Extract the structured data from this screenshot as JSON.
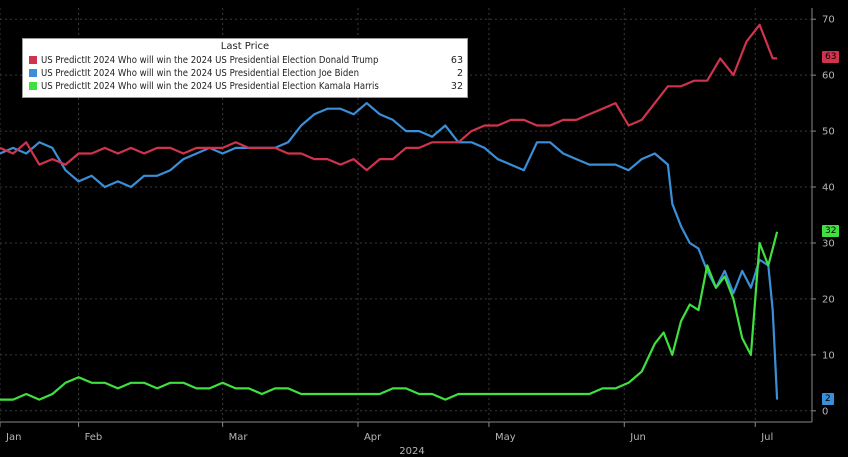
{
  "chart_data": {
    "type": "line",
    "legend": {
      "title": "Last Price",
      "placement": "top-left"
    },
    "series": [
      {
        "name": "US PredictIt 2024 Who will win the 2024 US Presidential Election Donald Trump",
        "last": "63",
        "color": "#d0334e",
        "values": [
          [
            0,
            47
          ],
          [
            3,
            46
          ],
          [
            6,
            48
          ],
          [
            9,
            44
          ],
          [
            12,
            45
          ],
          [
            15,
            44
          ],
          [
            18,
            46
          ],
          [
            21,
            46
          ],
          [
            24,
            47
          ],
          [
            27,
            46
          ],
          [
            30,
            47
          ],
          [
            33,
            46
          ],
          [
            36,
            47
          ],
          [
            39,
            47
          ],
          [
            42,
            46
          ],
          [
            45,
            47
          ],
          [
            48,
            47
          ],
          [
            51,
            47
          ],
          [
            54,
            48
          ],
          [
            57,
            47
          ],
          [
            60,
            47
          ],
          [
            63,
            47
          ],
          [
            66,
            46
          ],
          [
            69,
            46
          ],
          [
            72,
            45
          ],
          [
            75,
            45
          ],
          [
            78,
            44
          ],
          [
            81,
            45
          ],
          [
            84,
            43
          ],
          [
            87,
            45
          ],
          [
            90,
            45
          ],
          [
            93,
            47
          ],
          [
            96,
            47
          ],
          [
            99,
            48
          ],
          [
            102,
            48
          ],
          [
            105,
            48
          ],
          [
            108,
            50
          ],
          [
            111,
            51
          ],
          [
            114,
            51
          ],
          [
            117,
            52
          ],
          [
            120,
            52
          ],
          [
            123,
            51
          ],
          [
            126,
            51
          ],
          [
            129,
            52
          ],
          [
            132,
            52
          ],
          [
            135,
            53
          ],
          [
            138,
            54
          ],
          [
            141,
            55
          ],
          [
            144,
            51
          ],
          [
            147,
            52
          ],
          [
            150,
            55
          ],
          [
            153,
            58
          ],
          [
            156,
            58
          ],
          [
            159,
            59
          ],
          [
            162,
            59
          ],
          [
            165,
            63
          ],
          [
            168,
            60
          ],
          [
            171,
            66
          ],
          [
            174,
            69
          ],
          [
            177,
            63
          ],
          [
            178,
            63
          ]
        ]
      },
      {
        "name": "US PredictIt 2024 Who will win the 2024 US Presidential Election Joe Biden",
        "last": "2",
        "color": "#3a8fd8",
        "values": [
          [
            0,
            46
          ],
          [
            3,
            47
          ],
          [
            6,
            46
          ],
          [
            9,
            48
          ],
          [
            12,
            47
          ],
          [
            15,
            43
          ],
          [
            18,
            41
          ],
          [
            21,
            42
          ],
          [
            24,
            40
          ],
          [
            27,
            41
          ],
          [
            30,
            40
          ],
          [
            33,
            42
          ],
          [
            36,
            42
          ],
          [
            39,
            43
          ],
          [
            42,
            45
          ],
          [
            45,
            46
          ],
          [
            48,
            47
          ],
          [
            51,
            46
          ],
          [
            54,
            47
          ],
          [
            57,
            47
          ],
          [
            60,
            47
          ],
          [
            63,
            47
          ],
          [
            66,
            48
          ],
          [
            69,
            51
          ],
          [
            72,
            53
          ],
          [
            75,
            54
          ],
          [
            78,
            54
          ],
          [
            81,
            53
          ],
          [
            84,
            55
          ],
          [
            87,
            53
          ],
          [
            90,
            52
          ],
          [
            93,
            50
          ],
          [
            96,
            50
          ],
          [
            99,
            49
          ],
          [
            102,
            51
          ],
          [
            105,
            48
          ],
          [
            108,
            48
          ],
          [
            111,
            47
          ],
          [
            114,
            45
          ],
          [
            117,
            44
          ],
          [
            120,
            43
          ],
          [
            123,
            48
          ],
          [
            126,
            48
          ],
          [
            129,
            46
          ],
          [
            132,
            45
          ],
          [
            135,
            44
          ],
          [
            138,
            44
          ],
          [
            141,
            44
          ],
          [
            144,
            43
          ],
          [
            147,
            45
          ],
          [
            150,
            46
          ],
          [
            153,
            44
          ],
          [
            154,
            37
          ],
          [
            156,
            33
          ],
          [
            158,
            30
          ],
          [
            160,
            29
          ],
          [
            162,
            25
          ],
          [
            164,
            22
          ],
          [
            166,
            25
          ],
          [
            168,
            21
          ],
          [
            170,
            25
          ],
          [
            172,
            22
          ],
          [
            174,
            27
          ],
          [
            176,
            26
          ],
          [
            177,
            18
          ],
          [
            178,
            2
          ]
        ]
      },
      {
        "name": "US PredictIt 2024 Who will win the 2024 US Presidential Election Kamala Harris",
        "last": "32",
        "color": "#3fe03f",
        "values": [
          [
            0,
            2
          ],
          [
            3,
            2
          ],
          [
            6,
            3
          ],
          [
            9,
            2
          ],
          [
            12,
            3
          ],
          [
            15,
            5
          ],
          [
            18,
            6
          ],
          [
            21,
            5
          ],
          [
            24,
            5
          ],
          [
            27,
            4
          ],
          [
            30,
            5
          ],
          [
            33,
            5
          ],
          [
            36,
            4
          ],
          [
            39,
            5
          ],
          [
            42,
            5
          ],
          [
            45,
            4
          ],
          [
            48,
            4
          ],
          [
            51,
            5
          ],
          [
            54,
            4
          ],
          [
            57,
            4
          ],
          [
            60,
            3
          ],
          [
            63,
            4
          ],
          [
            66,
            4
          ],
          [
            69,
            3
          ],
          [
            72,
            3
          ],
          [
            75,
            3
          ],
          [
            78,
            3
          ],
          [
            81,
            3
          ],
          [
            84,
            3
          ],
          [
            87,
            3
          ],
          [
            90,
            4
          ],
          [
            93,
            4
          ],
          [
            96,
            3
          ],
          [
            99,
            3
          ],
          [
            102,
            2
          ],
          [
            105,
            3
          ],
          [
            108,
            3
          ],
          [
            111,
            3
          ],
          [
            114,
            3
          ],
          [
            117,
            3
          ],
          [
            120,
            3
          ],
          [
            123,
            3
          ],
          [
            126,
            3
          ],
          [
            129,
            3
          ],
          [
            132,
            3
          ],
          [
            135,
            3
          ],
          [
            138,
            4
          ],
          [
            141,
            4
          ],
          [
            144,
            5
          ],
          [
            147,
            7
          ],
          [
            150,
            12
          ],
          [
            152,
            14
          ],
          [
            154,
            10
          ],
          [
            156,
            16
          ],
          [
            158,
            19
          ],
          [
            160,
            18
          ],
          [
            162,
            26
          ],
          [
            164,
            22
          ],
          [
            166,
            24
          ],
          [
            168,
            20
          ],
          [
            170,
            13
          ],
          [
            172,
            10
          ],
          [
            174,
            30
          ],
          [
            176,
            26
          ],
          [
            177,
            29
          ],
          [
            178,
            32
          ]
        ]
      }
    ],
    "x_ticks": [
      "Jan",
      "Feb",
      "Mar",
      "Apr",
      "May",
      "Jun",
      "Jul"
    ],
    "x_tick_days": [
      0,
      18,
      51,
      82,
      112,
      143,
      173
    ],
    "xlabel": "2024",
    "xlim": [
      0,
      186
    ],
    "y_ticks": [
      "0",
      "10",
      "20",
      "30",
      "40",
      "50",
      "60",
      "70"
    ],
    "ylim": [
      -2,
      72
    ],
    "grid": true,
    "y_axis_side": "right"
  }
}
